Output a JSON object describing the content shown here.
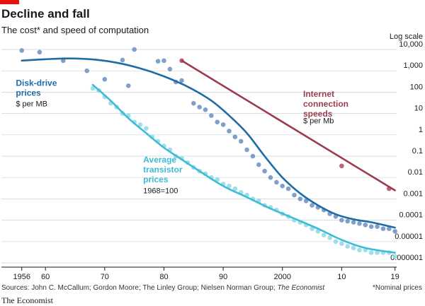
{
  "header": {
    "title": "Decline and fall",
    "subtitle": "The cost* and speed of computation",
    "log_scale_label": "Log scale"
  },
  "footer": {
    "sources_prefix": "Sources: John C. McCallum; Gordon Moore; The Linley Group; Nielsen Norman Group; ",
    "sources_italic": "The Economist",
    "note": "*Nominal prices",
    "brand": "The Economist"
  },
  "colors": {
    "disk": "#1f6ca4",
    "disk_points": "#6b8fc0",
    "transistor": "#3dbcd4",
    "transistor_points": "#8fd8e6",
    "internet": "#9b3d4f",
    "internet_points": "#b14a5e",
    "accent": "#e3120b"
  },
  "chart_data": {
    "type": "scatter",
    "x_domain": [
      1954,
      2020
    ],
    "y_scale": "log",
    "ylim": [
      1e-06,
      10000
    ],
    "grid": true,
    "x_ticks": [
      {
        "value": 1956,
        "label": "1956"
      },
      {
        "value": 1960,
        "label": "60"
      },
      {
        "value": 1970,
        "label": "70"
      },
      {
        "value": 1980,
        "label": "80"
      },
      {
        "value": 1990,
        "label": "90"
      },
      {
        "value": 2000,
        "label": "2000"
      },
      {
        "value": 2010,
        "label": "10"
      },
      {
        "value": 2019,
        "label": "19"
      }
    ],
    "y_ticks": [
      {
        "value": 10000,
        "label": "10,000"
      },
      {
        "value": 1000,
        "label": "1,000"
      },
      {
        "value": 100,
        "label": "100"
      },
      {
        "value": 10,
        "label": "10"
      },
      {
        "value": 1,
        "label": "1"
      },
      {
        "value": 0.1,
        "label": "0.1"
      },
      {
        "value": 0.01,
        "label": "0.01"
      },
      {
        "value": 0.001,
        "label": "0.001"
      },
      {
        "value": 0.0001,
        "label": "0.0001"
      },
      {
        "value": 1e-05,
        "label": "0.00001"
      },
      {
        "value": 1e-06,
        "label": "0.000001"
      }
    ],
    "series": [
      {
        "key": "disk",
        "label_lines": [
          "Disk-drive",
          "prices"
        ],
        "unit": "$ per MB",
        "label_anchor": [
          1955,
          200
        ],
        "unit_anchor": [
          1955,
          22
        ],
        "trend": [
          [
            1956,
            3000
          ],
          [
            1960,
            3500
          ],
          [
            1964,
            3800
          ],
          [
            1968,
            3400
          ],
          [
            1972,
            2400
          ],
          [
            1976,
            1300
          ],
          [
            1980,
            550
          ],
          [
            1984,
            180
          ],
          [
            1988,
            40
          ],
          [
            1991,
            8
          ],
          [
            1994,
            1.2
          ],
          [
            1997,
            0.1
          ],
          [
            2000,
            0.01
          ],
          [
            2003,
            0.0018
          ],
          [
            2006,
            0.0005
          ],
          [
            2009,
            0.00019
          ],
          [
            2012,
            0.00011
          ],
          [
            2015,
            8e-05
          ],
          [
            2019,
            4.5e-05
          ]
        ],
        "points": [
          [
            1956,
            9000
          ],
          [
            1959,
            7500
          ],
          [
            1963,
            3000
          ],
          [
            1967,
            1000
          ],
          [
            1970,
            400
          ],
          [
            1973,
            3200
          ],
          [
            1974,
            200
          ],
          [
            1975,
            10000
          ],
          [
            1979,
            2800
          ],
          [
            1980,
            3000
          ],
          [
            1981,
            1200
          ],
          [
            1982,
            300
          ],
          [
            1983,
            350
          ],
          [
            1985,
            30
          ],
          [
            1986,
            20
          ],
          [
            1987,
            15
          ],
          [
            1988,
            8
          ],
          [
            1989,
            4
          ],
          [
            1990,
            3
          ],
          [
            1991,
            1.5
          ],
          [
            1992,
            0.8
          ],
          [
            1993,
            0.5
          ],
          [
            1994,
            0.2
          ],
          [
            1995,
            0.1
          ],
          [
            1996,
            0.04
          ],
          [
            1997,
            0.02
          ],
          [
            1998,
            0.01
          ],
          [
            1999,
            0.006
          ],
          [
            2000,
            0.004
          ],
          [
            2001,
            0.003
          ],
          [
            2002,
            0.0015
          ],
          [
            2003,
            0.001
          ],
          [
            2004,
            0.0008
          ],
          [
            2005,
            0.0005
          ],
          [
            2006,
            0.0004
          ],
          [
            2007,
            0.0003
          ],
          [
            2008,
            0.0002
          ],
          [
            2009,
            0.00015
          ],
          [
            2010,
            0.0001
          ],
          [
            2011,
            9e-05
          ],
          [
            2012,
            8e-05
          ],
          [
            2013,
            7e-05
          ],
          [
            2014,
            6e-05
          ],
          [
            2015,
            5e-05
          ],
          [
            2016,
            5e-05
          ],
          [
            2017,
            4e-05
          ],
          [
            2018,
            4e-05
          ],
          [
            2019,
            3e-05
          ]
        ]
      },
      {
        "key": "transistor",
        "label_lines": [
          "Average",
          "transistor",
          "prices"
        ],
        "unit": "1968=100",
        "label_anchor": [
          1976.5,
          0.05
        ],
        "unit_anchor": [
          1976.5,
          0.0018
        ],
        "trend": [
          [
            1968,
            220
          ],
          [
            1971,
            40
          ],
          [
            1974,
            6
          ],
          [
            1977,
            1.2
          ],
          [
            1980,
            0.25
          ],
          [
            1983,
            0.07
          ],
          [
            1986,
            0.02
          ],
          [
            1990,
            0.004
          ],
          [
            1994,
            0.0012
          ],
          [
            1998,
            0.00035
          ],
          [
            2002,
            0.00012
          ],
          [
            2006,
            4e-05
          ],
          [
            2010,
            1.2e-05
          ],
          [
            2014,
            5e-06
          ],
          [
            2019,
            3e-06
          ]
        ],
        "points": [
          [
            1968,
            150
          ],
          [
            1969,
            120
          ],
          [
            1970,
            60
          ],
          [
            1971,
            30
          ],
          [
            1972,
            20
          ],
          [
            1973,
            10
          ],
          [
            1974,
            8
          ],
          [
            1975,
            4
          ],
          [
            1976,
            3
          ],
          [
            1977,
            2
          ],
          [
            1978,
            0.8
          ],
          [
            1979,
            0.5
          ],
          [
            1980,
            0.3
          ],
          [
            1981,
            0.2
          ],
          [
            1982,
            0.1
          ],
          [
            1983,
            0.08
          ],
          [
            1984,
            0.05
          ],
          [
            1985,
            0.03
          ],
          [
            1986,
            0.02
          ],
          [
            1987,
            0.015
          ],
          [
            1988,
            0.01
          ],
          [
            1989,
            0.008
          ],
          [
            1990,
            0.005
          ],
          [
            1991,
            0.004
          ],
          [
            1992,
            0.003
          ],
          [
            1993,
            0.002
          ],
          [
            1994,
            0.0015
          ],
          [
            1995,
            0.001
          ],
          [
            1996,
            0.0008
          ],
          [
            1997,
            0.0005
          ],
          [
            1998,
            0.0004
          ],
          [
            1999,
            0.0003
          ],
          [
            2000,
            0.0002
          ],
          [
            2001,
            0.00015
          ],
          [
            2002,
            0.0001
          ],
          [
            2003,
            8e-05
          ],
          [
            2004,
            6e-05
          ],
          [
            2005,
            4e-05
          ],
          [
            2006,
            3e-05
          ],
          [
            2007,
            2e-05
          ],
          [
            2008,
            1.5e-05
          ],
          [
            2009,
            1e-05
          ],
          [
            2010,
            8e-06
          ],
          [
            2011,
            6e-06
          ],
          [
            2012,
            5e-06
          ],
          [
            2013,
            4e-06
          ],
          [
            2014,
            4e-06
          ],
          [
            2015,
            3e-06
          ],
          [
            2016,
            3e-06
          ],
          [
            2017,
            3e-06
          ],
          [
            2018,
            3e-06
          ],
          [
            2019,
            2e-06
          ]
        ]
      },
      {
        "key": "internet",
        "label_lines": [
          "Internet",
          "connection",
          "speeds"
        ],
        "unit": "$ per Mb",
        "label_anchor": [
          2003.5,
          60
        ],
        "unit_anchor": [
          2003.5,
          3.5
        ],
        "trend": [
          [
            1983,
            3000
          ],
          [
            2019,
            0.0025
          ]
        ],
        "points": [
          [
            1983,
            3000
          ],
          [
            2010,
            0.035
          ],
          [
            2018,
            0.003
          ]
        ]
      }
    ]
  }
}
